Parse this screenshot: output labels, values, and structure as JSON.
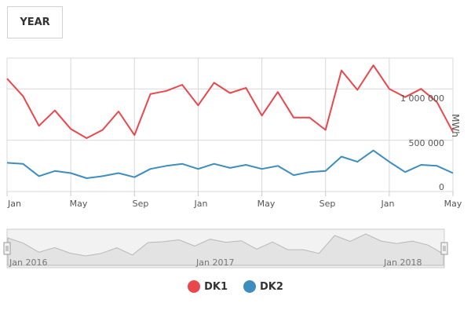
{
  "controls": {
    "range_label": "YEAR"
  },
  "y_axis": {
    "label": "MWh",
    "tick_labels": [
      "0",
      "500 000",
      "1 000 000"
    ]
  },
  "x_axis": {
    "tick_labels": [
      "Jan",
      "May",
      "Sep",
      "Jan",
      "May",
      "Sep",
      "Jan",
      "May"
    ]
  },
  "navigator": {
    "labels": [
      "Jan 2016",
      "Jan 2017",
      "Jan 2018"
    ]
  },
  "legend": [
    {
      "label": "DK1",
      "color": "#e8474c"
    },
    {
      "label": "DK2",
      "color": "#3d8dbf"
    }
  ],
  "chart_data": {
    "type": "line",
    "x": [
      "2016-01",
      "2016-02",
      "2016-03",
      "2016-04",
      "2016-05",
      "2016-06",
      "2016-07",
      "2016-08",
      "2016-09",
      "2016-10",
      "2016-11",
      "2016-12",
      "2017-01",
      "2017-02",
      "2017-03",
      "2017-04",
      "2017-05",
      "2017-06",
      "2017-07",
      "2017-08",
      "2017-09",
      "2017-10",
      "2017-11",
      "2017-12",
      "2018-01",
      "2018-02",
      "2018-03",
      "2018-04",
      "2018-05"
    ],
    "series": [
      {
        "name": "DK1",
        "color": "#e8474c",
        "values": [
          1100000,
          930000,
          640000,
          790000,
          610000,
          520000,
          600000,
          780000,
          550000,
          950000,
          980000,
          1040000,
          840000,
          1060000,
          960000,
          1010000,
          740000,
          970000,
          720000,
          720000,
          600000,
          1180000,
          990000,
          1230000,
          1000000,
          920000,
          1000000,
          870000,
          580000
        ]
      },
      {
        "name": "DK2",
        "color": "#3d8dbf",
        "values": [
          280000,
          270000,
          150000,
          200000,
          180000,
          130000,
          150000,
          180000,
          140000,
          220000,
          250000,
          270000,
          220000,
          270000,
          230000,
          260000,
          220000,
          250000,
          160000,
          190000,
          200000,
          340000,
          290000,
          400000,
          290000,
          190000,
          260000,
          250000,
          180000
        ]
      }
    ],
    "ylim": [
      0,
      1300000
    ],
    "grid": true,
    "legend_position": "bottom-center"
  }
}
